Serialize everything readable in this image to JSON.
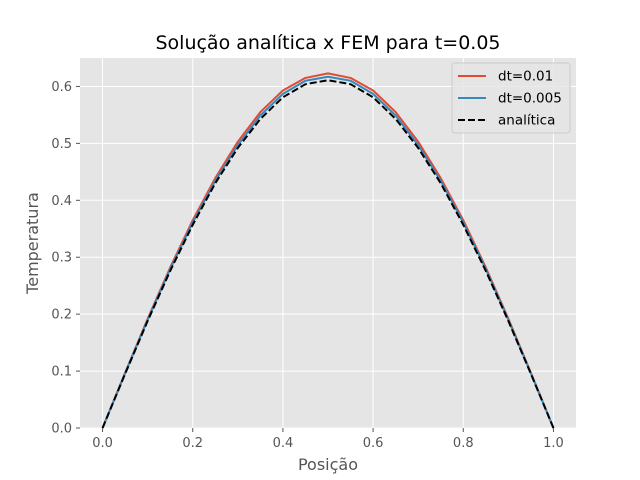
{
  "chart_data": {
    "type": "line",
    "title": "Solução analítica x FEM para t=0.05",
    "xlabel": "Posição",
    "ylabel": "Temperatura",
    "xlim": [
      -0.05,
      1.05
    ],
    "ylim": [
      0.0,
      0.65
    ],
    "xticks": [
      0.0,
      0.2,
      0.4,
      0.6,
      0.8,
      1.0
    ],
    "xtick_labels": [
      "0.0",
      "0.2",
      "0.4",
      "0.6",
      "0.8",
      "1.0"
    ],
    "yticks": [
      0.0,
      0.1,
      0.2,
      0.3,
      0.4,
      0.5,
      0.6
    ],
    "ytick_labels": [
      "0.0",
      "0.1",
      "0.2",
      "0.3",
      "0.4",
      "0.5",
      "0.6"
    ],
    "grid": true,
    "legend_position": "top-right",
    "background": "#e5e5e5",
    "x": [
      0.0,
      0.05,
      0.1,
      0.15,
      0.2,
      0.25,
      0.3,
      0.35,
      0.4,
      0.45,
      0.5,
      0.55,
      0.6,
      0.65,
      0.7,
      0.75,
      0.8,
      0.85,
      0.9,
      0.95,
      1.0
    ],
    "series": [
      {
        "name": "dt=0.01",
        "color": "#E24A33",
        "dash": "solid",
        "values": [
          0.0,
          0.097,
          0.192,
          0.282,
          0.365,
          0.439,
          0.503,
          0.555,
          0.593,
          0.615,
          0.623,
          0.615,
          0.593,
          0.555,
          0.503,
          0.439,
          0.365,
          0.282,
          0.192,
          0.097,
          0.0
        ]
      },
      {
        "name": "dt=0.005",
        "color": "#348ABD",
        "dash": "solid",
        "values": [
          0.0,
          0.096,
          0.19,
          0.279,
          0.361,
          0.434,
          0.497,
          0.549,
          0.587,
          0.61,
          0.617,
          0.61,
          0.587,
          0.549,
          0.497,
          0.434,
          0.361,
          0.279,
          0.19,
          0.096,
          0.0
        ]
      },
      {
        "name": "analítica",
        "color": "#000000",
        "dash": "dashed",
        "values": [
          0.0,
          0.095,
          0.188,
          0.276,
          0.357,
          0.43,
          0.492,
          0.543,
          0.581,
          0.604,
          0.611,
          0.604,
          0.581,
          0.543,
          0.492,
          0.43,
          0.357,
          0.276,
          0.188,
          0.095,
          0.0
        ]
      }
    ]
  }
}
